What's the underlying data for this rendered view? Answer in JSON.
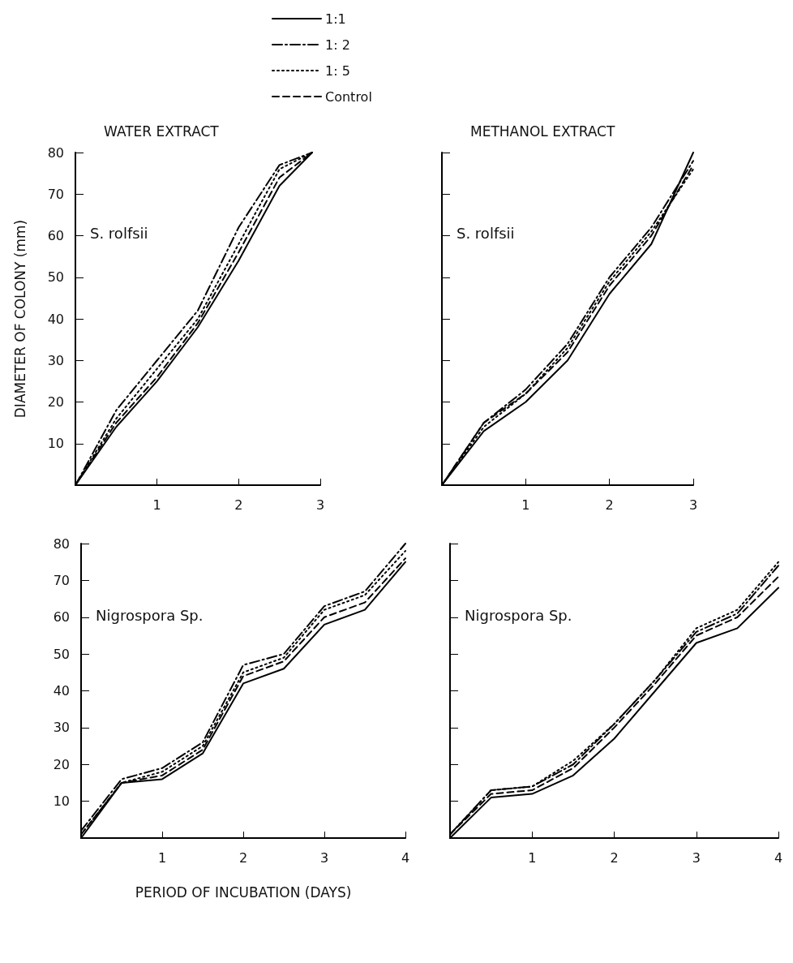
{
  "chart_data": [
    {
      "type": "line",
      "title": "WATER EXTRACT",
      "ylabel": "DIAMETER OF COLONY (mm)",
      "annotations": [
        "S. rolfsii"
      ],
      "legend": "top",
      "grid": false,
      "marker": "none",
      "xlim": [
        0,
        3
      ],
      "xticks": [
        1,
        2,
        3
      ],
      "ylim": [
        0,
        80
      ],
      "yticks": [
        10,
        20,
        30,
        40,
        50,
        60,
        70,
        80
      ],
      "x": [
        0,
        0.5,
        1,
        1.5,
        2,
        2.5,
        2.9
      ],
      "series": [
        {
          "name": "1:1",
          "color": "#000000",
          "line_style": "solid",
          "values": [
            0,
            14,
            25,
            38,
            54,
            72,
            80
          ]
        },
        {
          "name": "1: 2",
          "color": "#000000",
          "line_style": "dashdot",
          "values": [
            0,
            18,
            30,
            42,
            62,
            77,
            80
          ]
        },
        {
          "name": "1: 5",
          "color": "#000000",
          "line_style": "dotted",
          "values": [
            0,
            16,
            28,
            40,
            58,
            76,
            80
          ]
        },
        {
          "name": "Control",
          "color": "#000000",
          "line_style": "dashed",
          "values": [
            0,
            15,
            26,
            39,
            56,
            74,
            80
          ]
        }
      ]
    },
    {
      "type": "line",
      "title": "METHANOL EXTRACT",
      "annotations": [
        "S. rolfsii"
      ],
      "grid": false,
      "marker": "none",
      "tick_labels": "x",
      "xlim": [
        0,
        3
      ],
      "xticks": [
        1,
        2,
        3
      ],
      "ylim": [
        0,
        80
      ],
      "yticks": [
        10,
        20,
        30,
        40,
        50,
        60,
        70,
        80
      ],
      "x": [
        0,
        0.5,
        1,
        1.5,
        2,
        2.5,
        3
      ],
      "series": [
        {
          "color": "#000000",
          "line_style": "solid",
          "values": [
            0,
            13,
            20,
            30,
            46,
            58,
            80
          ]
        },
        {
          "color": "#000000",
          "line_style": "dashdot",
          "values": [
            0,
            15,
            23,
            34,
            50,
            62,
            78
          ]
        },
        {
          "color": "#000000",
          "line_style": "dotted",
          "values": [
            0,
            14,
            22,
            33,
            49,
            61,
            76
          ]
        },
        {
          "color": "#000000",
          "line_style": "dashed",
          "values": [
            0,
            15,
            22,
            32,
            48,
            60,
            77
          ]
        }
      ]
    },
    {
      "type": "line",
      "xlabel": "PERIOD OF INCUBATION (DAYS)",
      "annotations": [
        "Nigrospora Sp."
      ],
      "grid": false,
      "marker": "none",
      "xlim": [
        0,
        4
      ],
      "xticks": [
        1,
        2,
        3,
        4
      ],
      "ylim": [
        0,
        80
      ],
      "yticks": [
        10,
        20,
        30,
        40,
        50,
        60,
        70,
        80
      ],
      "x": [
        0,
        0.5,
        1,
        1.5,
        2,
        2.5,
        3,
        3.5,
        4
      ],
      "series": [
        {
          "color": "#000000",
          "line_style": "solid",
          "values": [
            0,
            15,
            16,
            23,
            42,
            46,
            58,
            62,
            75
          ]
        },
        {
          "color": "#000000",
          "line_style": "dashdot",
          "values": [
            2,
            16,
            19,
            26,
            47,
            50,
            63,
            67,
            80
          ]
        },
        {
          "color": "#000000",
          "line_style": "dotted",
          "values": [
            1,
            15,
            18,
            25,
            45,
            49,
            62,
            66,
            78
          ]
        },
        {
          "color": "#000000",
          "line_style": "dashed",
          "values": [
            1,
            15,
            17,
            24,
            44,
            48,
            60,
            64,
            76
          ]
        }
      ]
    },
    {
      "type": "line",
      "annotations": [
        "Nigrospora Sp."
      ],
      "grid": false,
      "marker": "none",
      "tick_labels": "x",
      "xlim": [
        0,
        4
      ],
      "xticks": [
        1,
        2,
        3,
        4
      ],
      "ylim": [
        0,
        80
      ],
      "yticks": [
        10,
        20,
        30,
        40,
        50,
        60,
        70,
        80
      ],
      "x": [
        0,
        0.5,
        1,
        1.5,
        2,
        2.5,
        3,
        3.5,
        4
      ],
      "series": [
        {
          "color": "#000000",
          "line_style": "solid",
          "values": [
            0,
            11,
            12,
            17,
            27,
            40,
            53,
            57,
            68
          ]
        },
        {
          "color": "#000000",
          "line_style": "dashdot",
          "values": [
            1,
            13,
            14,
            20,
            31,
            43,
            56,
            61,
            74
          ]
        },
        {
          "color": "#000000",
          "line_style": "dotted",
          "values": [
            1,
            13,
            14,
            21,
            31,
            43,
            57,
            62,
            75
          ]
        },
        {
          "color": "#000000",
          "line_style": "dashed",
          "values": [
            1,
            12,
            13,
            19,
            30,
            42,
            55,
            60,
            71
          ]
        }
      ]
    }
  ]
}
